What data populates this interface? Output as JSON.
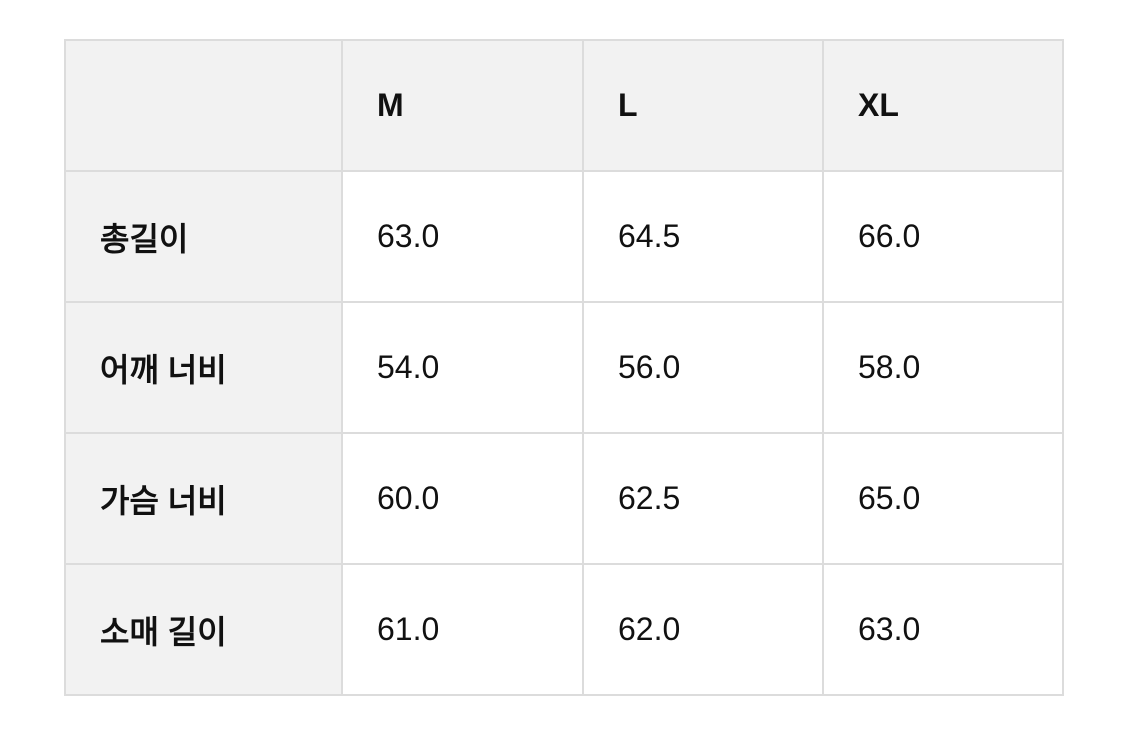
{
  "table": {
    "headers": [
      "",
      "M",
      "L",
      "XL"
    ],
    "rows": [
      {
        "label": "총길이",
        "values": [
          "63.0",
          "64.5",
          "66.0"
        ]
      },
      {
        "label": "어깨 너비",
        "values": [
          "54.0",
          "56.0",
          "58.0"
        ]
      },
      {
        "label": "가슴 너비",
        "values": [
          "60.0",
          "62.5",
          "65.0"
        ]
      },
      {
        "label": "소매 길이",
        "values": [
          "61.0",
          "62.0",
          "63.0"
        ]
      }
    ]
  }
}
